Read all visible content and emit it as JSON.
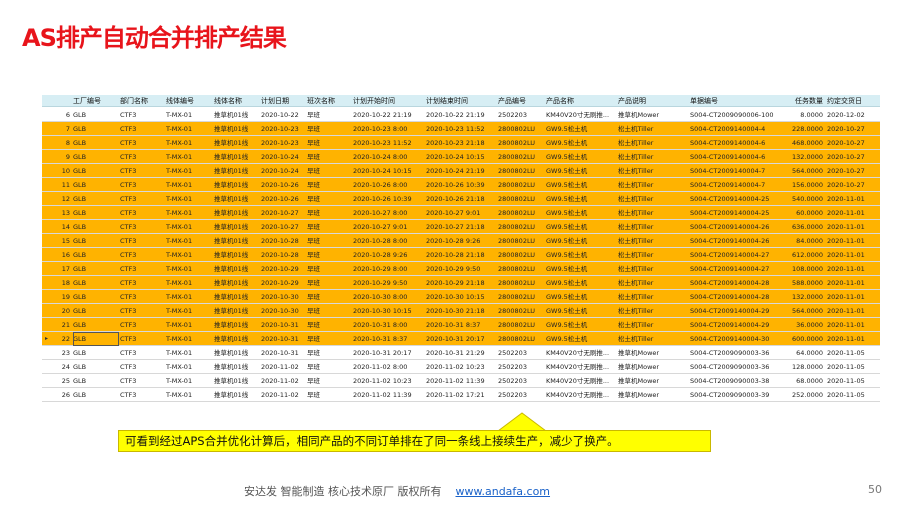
{
  "header": {
    "title": "AS排产自动合并排产结果"
  },
  "table": {
    "columns": [
      "工厂编号",
      "部门名称",
      "线体编号",
      "线体名称",
      "计划日期",
      "班次名称",
      "计划开始时间",
      "计划结束时间",
      "产品编号",
      "产品名称",
      "产品说明",
      "单据编号",
      "任务数量",
      "约定交货日"
    ],
    "highlight_color": "#ffb300",
    "selected_row": 16,
    "rows": [
      {
        "no": "6",
        "cells": [
          "GLB",
          "CTF3",
          "T-MX-01",
          "推草机01线",
          "2020-10-22",
          "早班",
          "2020-10-22 21:19",
          "2020-10-22 21:19",
          "2502203",
          "KM40V20寸无刷推...",
          "推草机Mower",
          "S004-CT2009090006-100",
          "8.0000",
          "2020-12-02"
        ],
        "highlight": false
      },
      {
        "no": "7",
        "cells": [
          "GLB",
          "CTF3",
          "T-MX-01",
          "推草机01线",
          "2020-10-23",
          "早班",
          "2020-10-23 8:00",
          "2020-10-23 11:52",
          "2800802LU",
          "GW9.5松土机",
          "松土机Tiller",
          "S004-CT2009140004-4",
          "228.0000",
          "2020-10-27"
        ],
        "highlight": true
      },
      {
        "no": "8",
        "cells": [
          "GLB",
          "CTF3",
          "T-MX-01",
          "推草机01线",
          "2020-10-23",
          "早班",
          "2020-10-23 11:52",
          "2020-10-23 21:18",
          "2800802LU",
          "GW9.5松土机",
          "松土机Tiller",
          "S004-CT2009140004-6",
          "468.0000",
          "2020-10-27"
        ],
        "highlight": true
      },
      {
        "no": "9",
        "cells": [
          "GLB",
          "CTF3",
          "T-MX-01",
          "推草机01线",
          "2020-10-24",
          "早班",
          "2020-10-24 8:00",
          "2020-10-24 10:15",
          "2800802LU",
          "GW9.5松土机",
          "松土机Tiller",
          "S004-CT2009140004-6",
          "132.0000",
          "2020-10-27"
        ],
        "highlight": true
      },
      {
        "no": "10",
        "cells": [
          "GLB",
          "CTF3",
          "T-MX-01",
          "推草机01线",
          "2020-10-24",
          "早班",
          "2020-10-24 10:15",
          "2020-10-24 21:19",
          "2800802LU",
          "GW9.5松土机",
          "松土机Tiller",
          "S004-CT2009140004-7",
          "564.0000",
          "2020-10-27"
        ],
        "highlight": true
      },
      {
        "no": "11",
        "cells": [
          "GLB",
          "CTF3",
          "T-MX-01",
          "推草机01线",
          "2020-10-26",
          "早班",
          "2020-10-26 8:00",
          "2020-10-26 10:39",
          "2800802LU",
          "GW9.5松土机",
          "松土机Tiller",
          "S004-CT2009140004-7",
          "156.0000",
          "2020-10-27"
        ],
        "highlight": true
      },
      {
        "no": "12",
        "cells": [
          "GLB",
          "CTF3",
          "T-MX-01",
          "推草机01线",
          "2020-10-26",
          "早班",
          "2020-10-26 10:39",
          "2020-10-26 21:18",
          "2800802LU",
          "GW9.5松土机",
          "松土机Tiller",
          "S004-CT2009140004-25",
          "540.0000",
          "2020-11-01"
        ],
        "highlight": true
      },
      {
        "no": "13",
        "cells": [
          "GLB",
          "CTF3",
          "T-MX-01",
          "推草机01线",
          "2020-10-27",
          "早班",
          "2020-10-27 8:00",
          "2020-10-27 9:01",
          "2800802LU",
          "GW9.5松土机",
          "松土机Tiller",
          "S004-CT2009140004-25",
          "60.0000",
          "2020-11-01"
        ],
        "highlight": true
      },
      {
        "no": "14",
        "cells": [
          "GLB",
          "CTF3",
          "T-MX-01",
          "推草机01线",
          "2020-10-27",
          "早班",
          "2020-10-27 9:01",
          "2020-10-27 21:18",
          "2800802LU",
          "GW9.5松土机",
          "松土机Tiller",
          "S004-CT2009140004-26",
          "636.0000",
          "2020-11-01"
        ],
        "highlight": true
      },
      {
        "no": "15",
        "cells": [
          "GLB",
          "CTF3",
          "T-MX-01",
          "推草机01线",
          "2020-10-28",
          "早班",
          "2020-10-28 8:00",
          "2020-10-28 9:26",
          "2800802LU",
          "GW9.5松土机",
          "松土机Tiller",
          "S004-CT2009140004-26",
          "84.0000",
          "2020-11-01"
        ],
        "highlight": true
      },
      {
        "no": "16",
        "cells": [
          "GLB",
          "CTF3",
          "T-MX-01",
          "推草机01线",
          "2020-10-28",
          "早班",
          "2020-10-28 9:26",
          "2020-10-28 21:18",
          "2800802LU",
          "GW9.5松土机",
          "松土机Tiller",
          "S004-CT2009140004-27",
          "612.0000",
          "2020-11-01"
        ],
        "highlight": true
      },
      {
        "no": "17",
        "cells": [
          "GLB",
          "CTF3",
          "T-MX-01",
          "推草机01线",
          "2020-10-29",
          "早班",
          "2020-10-29 8:00",
          "2020-10-29 9:50",
          "2800802LU",
          "GW9.5松土机",
          "松土机Tiller",
          "S004-CT2009140004-27",
          "108.0000",
          "2020-11-01"
        ],
        "highlight": true
      },
      {
        "no": "18",
        "cells": [
          "GLB",
          "CTF3",
          "T-MX-01",
          "推草机01线",
          "2020-10-29",
          "早班",
          "2020-10-29 9:50",
          "2020-10-29 21:18",
          "2800802LU",
          "GW9.5松土机",
          "松土机Tiller",
          "S004-CT2009140004-28",
          "588.0000",
          "2020-11-01"
        ],
        "highlight": true
      },
      {
        "no": "19",
        "cells": [
          "GLB",
          "CTF3",
          "T-MX-01",
          "推草机01线",
          "2020-10-30",
          "早班",
          "2020-10-30 8:00",
          "2020-10-30 10:15",
          "2800802LU",
          "GW9.5松土机",
          "松土机Tiller",
          "S004-CT2009140004-28",
          "132.0000",
          "2020-11-01"
        ],
        "highlight": true
      },
      {
        "no": "20",
        "cells": [
          "GLB",
          "CTF3",
          "T-MX-01",
          "推草机01线",
          "2020-10-30",
          "早班",
          "2020-10-30 10:15",
          "2020-10-30 21:18",
          "2800802LU",
          "GW9.5松土机",
          "松土机Tiller",
          "S004-CT2009140004-29",
          "564.0000",
          "2020-11-01"
        ],
        "highlight": true
      },
      {
        "no": "21",
        "cells": [
          "GLB",
          "CTF3",
          "T-MX-01",
          "推草机01线",
          "2020-10-31",
          "早班",
          "2020-10-31 8:00",
          "2020-10-31 8:37",
          "2800802LU",
          "GW9.5松土机",
          "松土机Tiller",
          "S004-CT2009140004-29",
          "36.0000",
          "2020-11-01"
        ],
        "highlight": true
      },
      {
        "no": "22",
        "cells": [
          "GLB",
          "CTF3",
          "T-MX-01",
          "推草机01线",
          "2020-10-31",
          "早班",
          "2020-10-31 8:37",
          "2020-10-31 20:17",
          "2800802LU",
          "GW9.5松土机",
          "松土机Tiller",
          "S004-CT2009140004-30",
          "600.0000",
          "2020-11-01"
        ],
        "highlight": true
      },
      {
        "no": "23",
        "cells": [
          "GLB",
          "CTF3",
          "T-MX-01",
          "推草机01线",
          "2020-10-31",
          "早班",
          "2020-10-31 20:17",
          "2020-10-31 21:29",
          "2502203",
          "KM40V20寸无刷推...",
          "推草机Mower",
          "S004-CT2009090003-36",
          "64.0000",
          "2020-11-05"
        ],
        "highlight": false
      },
      {
        "no": "24",
        "cells": [
          "GLB",
          "CTF3",
          "T-MX-01",
          "推草机01线",
          "2020-11-02",
          "早班",
          "2020-11-02 8:00",
          "2020-11-02 10:23",
          "2502203",
          "KM40V20寸无刷推...",
          "推草机Mower",
          "S004-CT2009090003-36",
          "128.0000",
          "2020-11-05"
        ],
        "highlight": false
      },
      {
        "no": "25",
        "cells": [
          "GLB",
          "CTF3",
          "T-MX-01",
          "推草机01线",
          "2020-11-02",
          "早班",
          "2020-11-02 10:23",
          "2020-11-02 11:39",
          "2502203",
          "KM40V20寸无刷推...",
          "推草机Mower",
          "S004-CT2009090003-38",
          "68.0000",
          "2020-11-05"
        ],
        "highlight": false
      },
      {
        "no": "26",
        "cells": [
          "GLB",
          "CTF3",
          "T-MX-01",
          "推草机01线",
          "2020-11-02",
          "早班",
          "2020-11-02 11:39",
          "2020-11-02 17:21",
          "2502203",
          "KM40V20寸无刷推...",
          "推草机Mower",
          "S004-CT2009090003-39",
          "252.0000",
          "2020-11-05"
        ],
        "highlight": false
      }
    ]
  },
  "callout": "可看到经过APS合并优化计算后，相同产品的不同订单排在了同一条线上接续生产，减少了换产。",
  "footer": {
    "text": "安达发  智能制造 核心技术原厂   版权所有",
    "link": "www.andafa.com",
    "page": "50"
  }
}
